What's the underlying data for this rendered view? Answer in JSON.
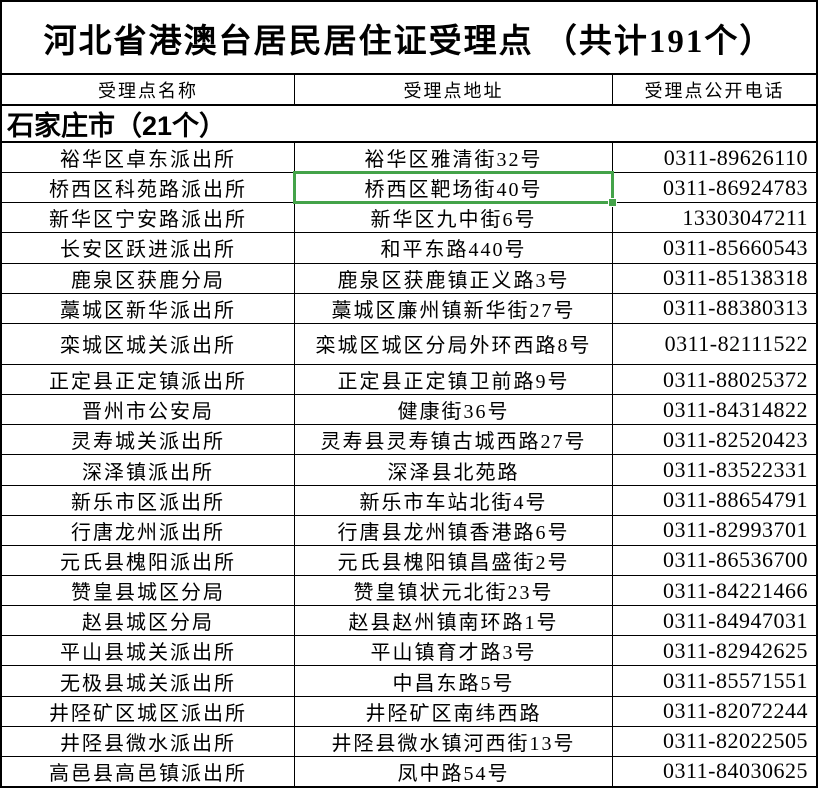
{
  "title": "河北省港澳台居民居住证受理点 （共计191个）",
  "table": {
    "columns": [
      "受理点名称",
      "受理点地址",
      "受理点公开电话"
    ],
    "section": "石家庄市（21个）",
    "rows": [
      {
        "name": "裕华区卓东派出所",
        "address": "裕华区雅清街32号",
        "phone": "0311-89626110"
      },
      {
        "name": "桥西区科苑路派出所",
        "address": "桥西区靶场街40号",
        "phone": "0311-86924783"
      },
      {
        "name": "新华区宁安路派出所",
        "address": "新华区九中街6号",
        "phone": "13303047211"
      },
      {
        "name": "长安区跃进派出所",
        "address": "和平东路440号",
        "phone": "0311-85660543"
      },
      {
        "name": "鹿泉区获鹿分局",
        "address": "鹿泉区获鹿镇正义路3号",
        "phone": "0311-85138318"
      },
      {
        "name": "藁城区新华派出所",
        "address": "藁城区廉州镇新华街27号",
        "phone": "0311-88380313"
      },
      {
        "name": "栾城区城关派出所",
        "address": "栾城区城区分局外环西路8号",
        "phone": "0311-82111522"
      },
      {
        "name": "正定县正定镇派出所",
        "address": "正定县正定镇卫前路9号",
        "phone": "0311-88025372"
      },
      {
        "name": "晋州市公安局",
        "address": "健康街36号",
        "phone": "0311-84314822"
      },
      {
        "name": "灵寿城关派出所",
        "address": "灵寿县灵寿镇古城西路27号",
        "phone": "0311-82520423"
      },
      {
        "name": "深泽镇派出所",
        "address": "深泽县北苑路",
        "phone": "0311-83522331"
      },
      {
        "name": "新乐市区派出所",
        "address": "新乐市车站北街4号",
        "phone": "0311-88654791"
      },
      {
        "name": "行唐龙州派出所",
        "address": "行唐县龙州镇香港路6号",
        "phone": "0311-82993701"
      },
      {
        "name": "元氏县槐阳派出所",
        "address": "元氏县槐阳镇昌盛街2号",
        "phone": "0311-86536700"
      },
      {
        "name": "赞皇县城区分局",
        "address": "赞皇镇状元北街23号",
        "phone": "0311-84221466"
      },
      {
        "name": "赵县城区分局",
        "address": "赵县赵州镇南环路1号",
        "phone": "0311-84947031"
      },
      {
        "name": "平山县城关派出所",
        "address": "平山镇育才路3号",
        "phone": "0311-82942625"
      },
      {
        "name": "无极县城关派出所",
        "address": "中昌东路5号",
        "phone": "0311-85571551"
      },
      {
        "name": "井陉矿区城区派出所",
        "address": "井陉矿区南纬西路",
        "phone": "0311-82072244"
      },
      {
        "name": "井陉县微水派出所",
        "address": "井陉县微水镇河西街13号",
        "phone": "0311-82022505"
      },
      {
        "name": "高邑县高邑镇派出所",
        "address": "凤中路54号",
        "phone": "0311-84030625"
      }
    ]
  },
  "selection": {
    "row_index": 2,
    "column": "address"
  },
  "colors": {
    "selection_green": "#44a349",
    "grid_line": "#000000",
    "background": "#ffffff",
    "text": "#000000"
  }
}
